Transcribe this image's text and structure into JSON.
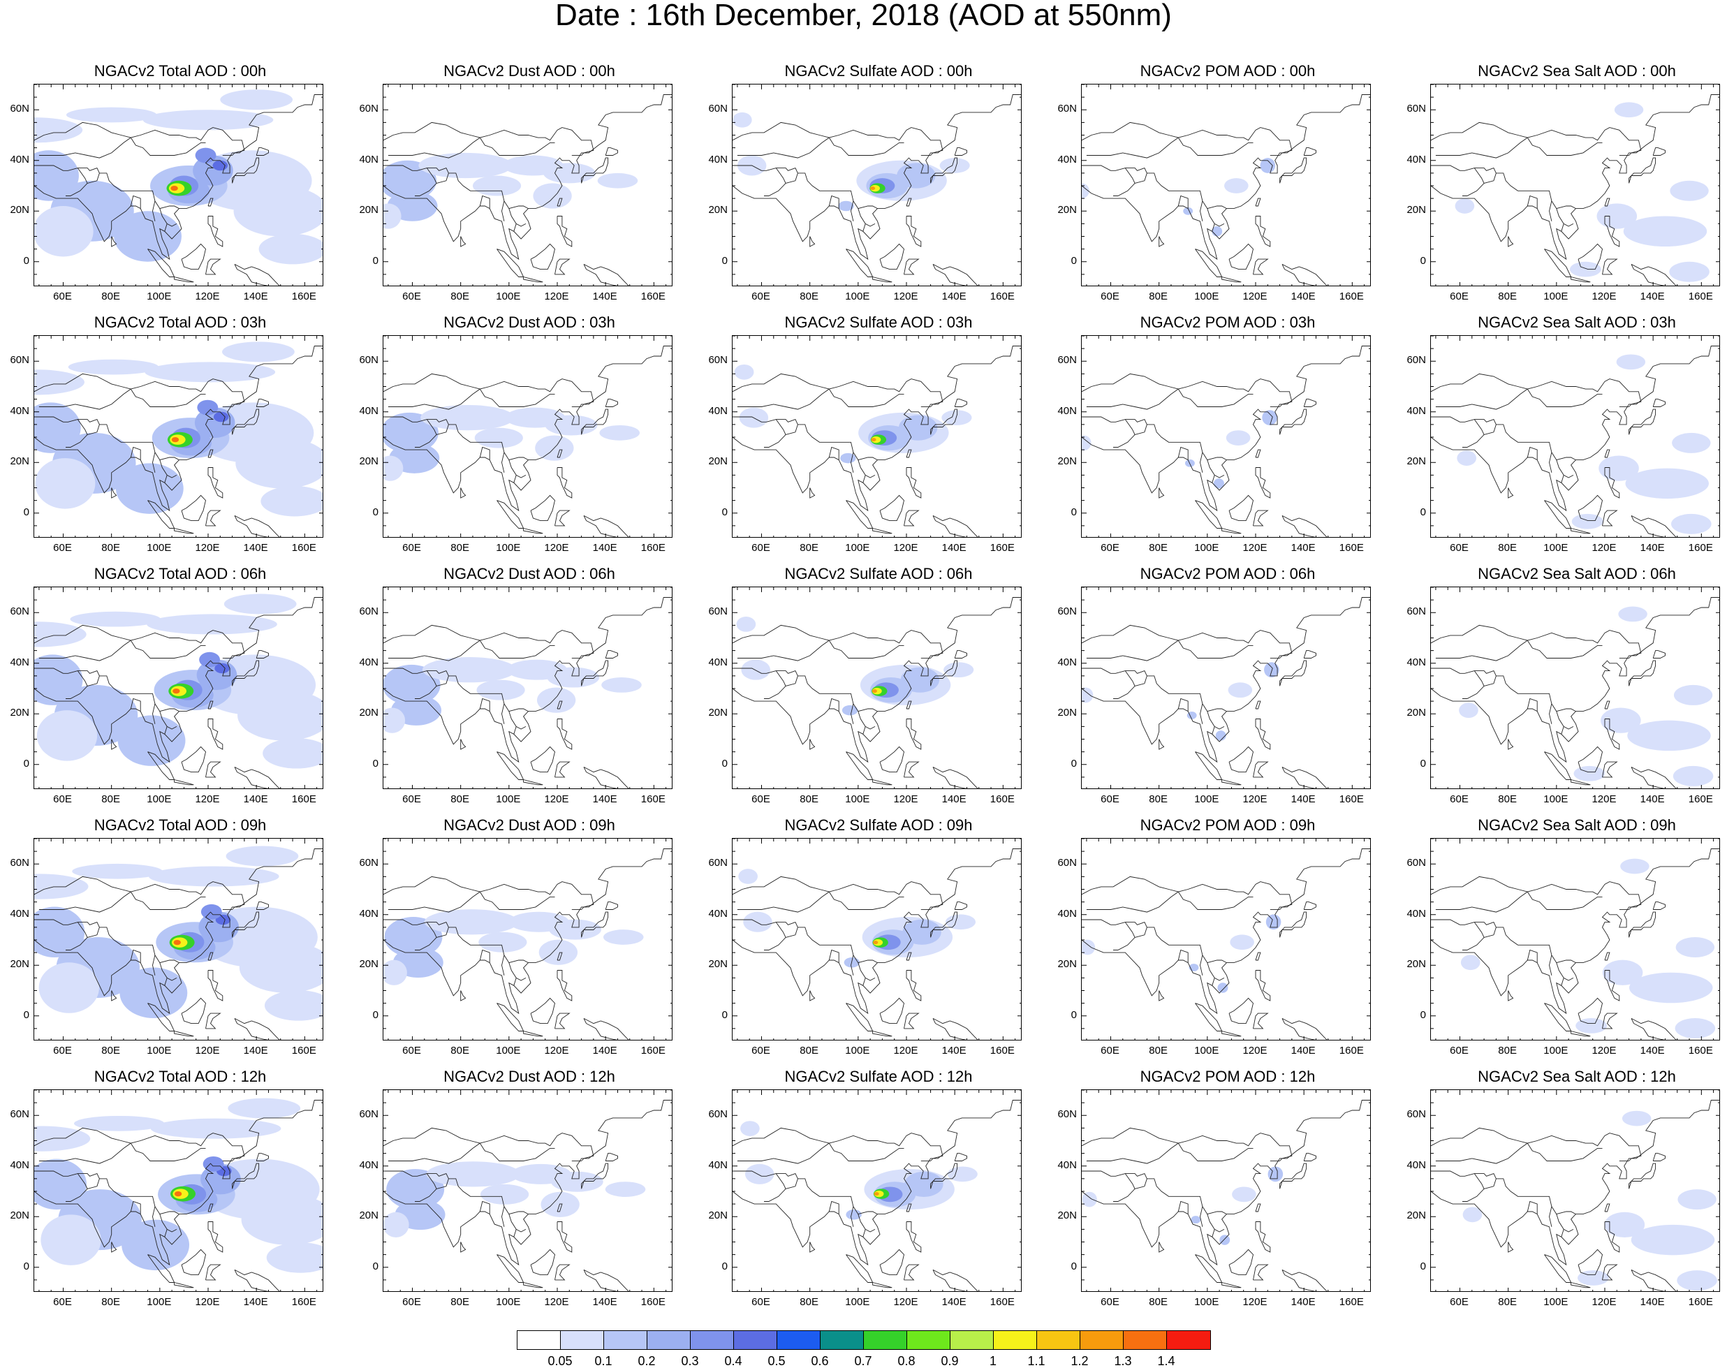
{
  "figure": {
    "title": "Date : 16th December, 2018 (AOD at 550nm)"
  },
  "axes": {
    "x_labels": [
      "60E",
      "80E",
      "100E",
      "120E",
      "140E",
      "160E"
    ],
    "y_labels": [
      "60N",
      "40N",
      "20N",
      "0"
    ],
    "lon_range": [
      48,
      168
    ],
    "lat_range": [
      -10,
      70
    ]
  },
  "colors": {
    "levels": [
      {
        "label": "0.05",
        "color": "#ffffff"
      },
      {
        "label": "0.1",
        "color": "#d8e0fb"
      },
      {
        "label": "0.2",
        "color": "#b6c6f6"
      },
      {
        "label": "0.3",
        "color": "#9cb0f1"
      },
      {
        "label": "0.4",
        "color": "#7f93ec"
      },
      {
        "label": "0.5",
        "color": "#5c6de3"
      },
      {
        "label": "0.6",
        "color": "#1c5cf0"
      },
      {
        "label": "0.7",
        "color": "#0a8f8a"
      },
      {
        "label": "0.8",
        "color": "#35d12a"
      },
      {
        "label": "0.9",
        "color": "#6ee81c"
      },
      {
        "label": "1",
        "color": "#b8ef4a"
      },
      {
        "label": "1.1",
        "color": "#f6f21a"
      },
      {
        "label": "1.2",
        "color": "#f7c512"
      },
      {
        "label": "1.3",
        "color": "#f79b0d"
      },
      {
        "label": "1.4",
        "color": "#f77010"
      },
      {
        "label": "",
        "color": "#f51c10"
      }
    ]
  },
  "panels": [
    {
      "title": "NGACv2 Total AOD : 00h",
      "species": "total",
      "hour": 0
    },
    {
      "title": "NGACv2 Dust AOD : 00h",
      "species": "dust",
      "hour": 0
    },
    {
      "title": "NGACv2 Sulfate AOD : 00h",
      "species": "sulfate",
      "hour": 0
    },
    {
      "title": "NGACv2 POM AOD : 00h",
      "species": "pom",
      "hour": 0
    },
    {
      "title": "NGACv2 Sea Salt AOD : 00h",
      "species": "seasalt",
      "hour": 0
    },
    {
      "title": "NGACv2 Total AOD : 03h",
      "species": "total",
      "hour": 3
    },
    {
      "title": "NGACv2 Dust AOD : 03h",
      "species": "dust",
      "hour": 3
    },
    {
      "title": "NGACv2 Sulfate AOD : 03h",
      "species": "sulfate",
      "hour": 3
    },
    {
      "title": "NGACv2 POM AOD : 03h",
      "species": "pom",
      "hour": 3
    },
    {
      "title": "NGACv2 Sea Salt AOD : 03h",
      "species": "seasalt",
      "hour": 3
    },
    {
      "title": "NGACv2 Total AOD : 06h",
      "species": "total",
      "hour": 6
    },
    {
      "title": "NGACv2 Dust AOD : 06h",
      "species": "dust",
      "hour": 6
    },
    {
      "title": "NGACv2 Sulfate AOD : 06h",
      "species": "sulfate",
      "hour": 6
    },
    {
      "title": "NGACv2 POM AOD : 06h",
      "species": "pom",
      "hour": 6
    },
    {
      "title": "NGACv2 Sea Salt AOD : 06h",
      "species": "seasalt",
      "hour": 6
    },
    {
      "title": "NGACv2 Total AOD : 09h",
      "species": "total",
      "hour": 9
    },
    {
      "title": "NGACv2 Dust AOD : 09h",
      "species": "dust",
      "hour": 9
    },
    {
      "title": "NGACv2 Sulfate AOD : 09h",
      "species": "sulfate",
      "hour": 9
    },
    {
      "title": "NGACv2 POM AOD : 09h",
      "species": "pom",
      "hour": 9
    },
    {
      "title": "NGACv2 Sea Salt  AOD : 09h",
      "species": "seasalt",
      "hour": 9
    },
    {
      "title": "NGACv2 Total AOD  : 12h",
      "species": "total",
      "hour": 12
    },
    {
      "title": "NGACv2 Dust AOD : 12h",
      "species": "dust",
      "hour": 12
    },
    {
      "title": "NGACv2 Sulfate AOD : 12h",
      "species": "sulfate",
      "hour": 12
    },
    {
      "title": "NGACv2 POM  AOD : 12h",
      "species": "pom",
      "hour": 12
    },
    {
      "title": "NGACv2 Sea Salt  AOD : 12h",
      "species": "seasalt",
      "hour": 12
    }
  ]
}
